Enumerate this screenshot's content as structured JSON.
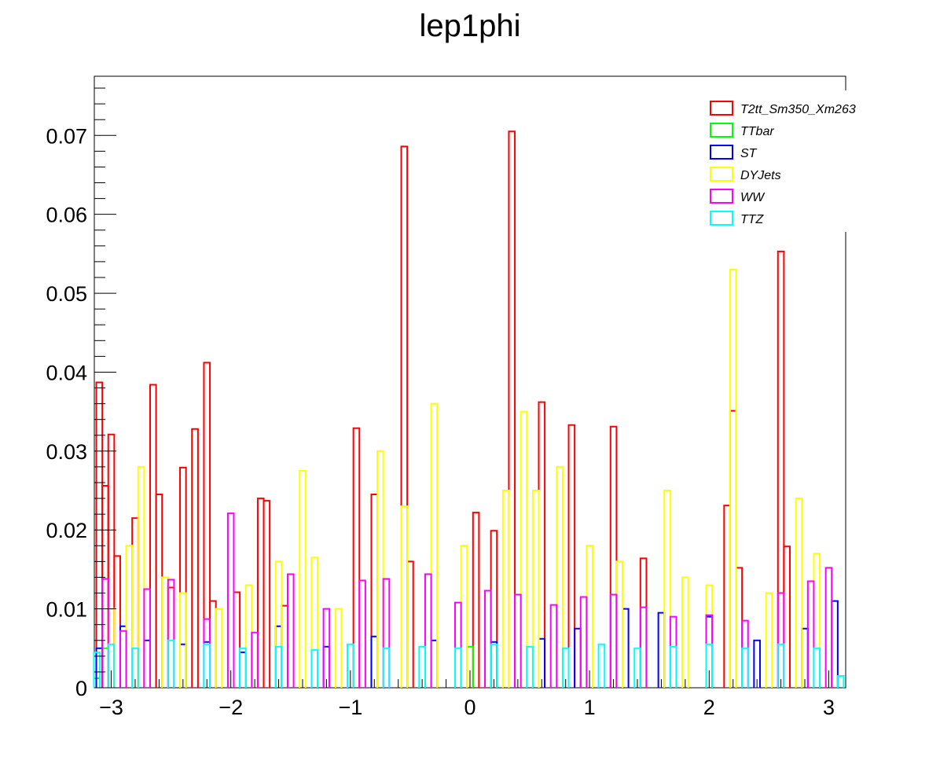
{
  "chart_data": {
    "type": "step-histogram",
    "title": "lep1phi",
    "xlim": [
      -3.1416,
      3.1416
    ],
    "ylim": [
      0,
      0.0775
    ],
    "grid": false,
    "legend_position": "top-right",
    "x_ticks": [
      {
        "value": -3,
        "label": "−3"
      },
      {
        "value": -2,
        "label": "−2"
      },
      {
        "value": -1,
        "label": "−1"
      },
      {
        "value": 0,
        "label": "0"
      },
      {
        "value": 1,
        "label": "1"
      },
      {
        "value": 2,
        "label": "2"
      },
      {
        "value": 3,
        "label": "3"
      }
    ],
    "y_ticks": [
      {
        "value": 0,
        "label": "0"
      },
      {
        "value": 0.01,
        "label": "0.01"
      },
      {
        "value": 0.02,
        "label": "0.02"
      },
      {
        "value": 0.03,
        "label": "0.03"
      },
      {
        "value": 0.04,
        "label": "0.04"
      },
      {
        "value": 0.05,
        "label": "0.05"
      },
      {
        "value": 0.06,
        "label": "0.06"
      },
      {
        "value": 0.07,
        "label": "0.07"
      }
    ],
    "series": [
      {
        "name": "T2tt_Sm350_Xm263",
        "color": "#ff0000",
        "points": [
          [
            -3.1,
            0.0387
          ],
          [
            -3.05,
            0.0256
          ],
          [
            -3.0,
            0.0321
          ],
          [
            -2.95,
            0.0167
          ],
          [
            -2.8,
            0.0215
          ],
          [
            -2.65,
            0.0384
          ],
          [
            -2.6,
            0.0245
          ],
          [
            -2.5,
            0.0127
          ],
          [
            -2.4,
            0.0279
          ],
          [
            -2.3,
            0.0328
          ],
          [
            -2.2,
            0.0412
          ],
          [
            -2.15,
            0.011
          ],
          [
            -1.95,
            0.0121
          ],
          [
            -1.75,
            0.024
          ],
          [
            -1.7,
            0.0237
          ],
          [
            -1.55,
            0.0104
          ],
          [
            -0.95,
            0.0329
          ],
          [
            -0.8,
            0.0245
          ],
          [
            -0.55,
            0.0686
          ],
          [
            -0.5,
            0.016
          ],
          [
            0.05,
            0.0222
          ],
          [
            0.2,
            0.0199
          ],
          [
            0.35,
            0.0705
          ],
          [
            0.6,
            0.0362
          ],
          [
            0.85,
            0.0333
          ],
          [
            1.2,
            0.0331
          ],
          [
            1.45,
            0.0164
          ],
          [
            2.15,
            0.0231
          ],
          [
            2.2,
            0.0351
          ],
          [
            2.25,
            0.0152
          ],
          [
            2.6,
            0.0553
          ],
          [
            2.65,
            0.0179
          ]
        ]
      },
      {
        "name": "TTbar",
        "color": "#00ff00",
        "points": [
          [
            -3.12,
            0.0012
          ],
          [
            -3.05,
            0.005
          ],
          [
            0.0,
            0.0052
          ],
          [
            3.1,
            0.0015
          ]
        ]
      },
      {
        "name": "ST",
        "color": "#0000ff",
        "points": [
          [
            -3.1,
            0.005
          ],
          [
            -2.9,
            0.0078
          ],
          [
            -2.7,
            0.006
          ],
          [
            -2.4,
            0.0055
          ],
          [
            -2.2,
            0.0058
          ],
          [
            -1.9,
            0.0045
          ],
          [
            -1.6,
            0.0078
          ],
          [
            -1.2,
            0.0052
          ],
          [
            -0.8,
            0.0065
          ],
          [
            -0.3,
            0.006
          ],
          [
            0.2,
            0.0058
          ],
          [
            0.6,
            0.0062
          ],
          [
            0.9,
            0.0075
          ],
          [
            1.3,
            0.01
          ],
          [
            1.6,
            0.0095
          ],
          [
            2.0,
            0.009
          ],
          [
            2.4,
            0.006
          ],
          [
            2.8,
            0.0075
          ],
          [
            3.05,
            0.011
          ]
        ]
      },
      {
        "name": "DYJets",
        "color": "#ffff00",
        "points": [
          [
            -3.0,
            0.01
          ],
          [
            -2.85,
            0.018
          ],
          [
            -2.75,
            0.028
          ],
          [
            -2.55,
            0.014
          ],
          [
            -2.4,
            0.012
          ],
          [
            -2.1,
            0.01
          ],
          [
            -1.85,
            0.013
          ],
          [
            -1.6,
            0.016
          ],
          [
            -1.4,
            0.0275
          ],
          [
            -1.3,
            0.0165
          ],
          [
            -1.1,
            0.01
          ],
          [
            -0.75,
            0.03
          ],
          [
            -0.55,
            0.023
          ],
          [
            -0.3,
            0.036
          ],
          [
            -0.05,
            0.018
          ],
          [
            0.3,
            0.025
          ],
          [
            0.45,
            0.035
          ],
          [
            0.55,
            0.025
          ],
          [
            0.75,
            0.028
          ],
          [
            1.0,
            0.018
          ],
          [
            1.25,
            0.016
          ],
          [
            1.65,
            0.025
          ],
          [
            1.8,
            0.014
          ],
          [
            2.0,
            0.013
          ],
          [
            2.2,
            0.053
          ],
          [
            2.5,
            0.012
          ],
          [
            2.75,
            0.024
          ],
          [
            2.9,
            0.017
          ]
        ]
      },
      {
        "name": "WW",
        "color": "#ff00ff",
        "points": [
          [
            -3.05,
            0.0138
          ],
          [
            -2.9,
            0.0072
          ],
          [
            -2.7,
            0.0125
          ],
          [
            -2.5,
            0.0137
          ],
          [
            -2.2,
            0.0087
          ],
          [
            -2.0,
            0.0221
          ],
          [
            -1.8,
            0.007
          ],
          [
            -1.5,
            0.0144
          ],
          [
            -1.2,
            0.01
          ],
          [
            -0.9,
            0.0136
          ],
          [
            -0.7,
            0.0138
          ],
          [
            -0.35,
            0.0144
          ],
          [
            -0.1,
            0.0108
          ],
          [
            0.15,
            0.0123
          ],
          [
            0.4,
            0.0118
          ],
          [
            0.7,
            0.0105
          ],
          [
            0.95,
            0.0115
          ],
          [
            1.2,
            0.0118
          ],
          [
            1.45,
            0.0102
          ],
          [
            1.7,
            0.009
          ],
          [
            2.0,
            0.0092
          ],
          [
            2.3,
            0.0085
          ],
          [
            2.6,
            0.012
          ],
          [
            2.85,
            0.0135
          ],
          [
            3.0,
            0.0152
          ]
        ]
      },
      {
        "name": "TTZ",
        "color": "#00ffff",
        "points": [
          [
            -3.12,
            0.0045
          ],
          [
            -3.0,
            0.0055
          ],
          [
            -2.8,
            0.005
          ],
          [
            -2.5,
            0.006
          ],
          [
            -2.2,
            0.0055
          ],
          [
            -1.9,
            0.005
          ],
          [
            -1.6,
            0.0052
          ],
          [
            -1.3,
            0.0048
          ],
          [
            -1.0,
            0.0055
          ],
          [
            -0.7,
            0.005
          ],
          [
            -0.4,
            0.0052
          ],
          [
            -0.1,
            0.005
          ],
          [
            0.2,
            0.0055
          ],
          [
            0.5,
            0.0052
          ],
          [
            0.8,
            0.005
          ],
          [
            1.1,
            0.0055
          ],
          [
            1.4,
            0.005
          ],
          [
            1.7,
            0.0052
          ],
          [
            2.0,
            0.0055
          ],
          [
            2.3,
            0.005
          ],
          [
            2.6,
            0.0055
          ],
          [
            2.9,
            0.005
          ],
          [
            3.1,
            0.0015
          ]
        ]
      }
    ]
  }
}
